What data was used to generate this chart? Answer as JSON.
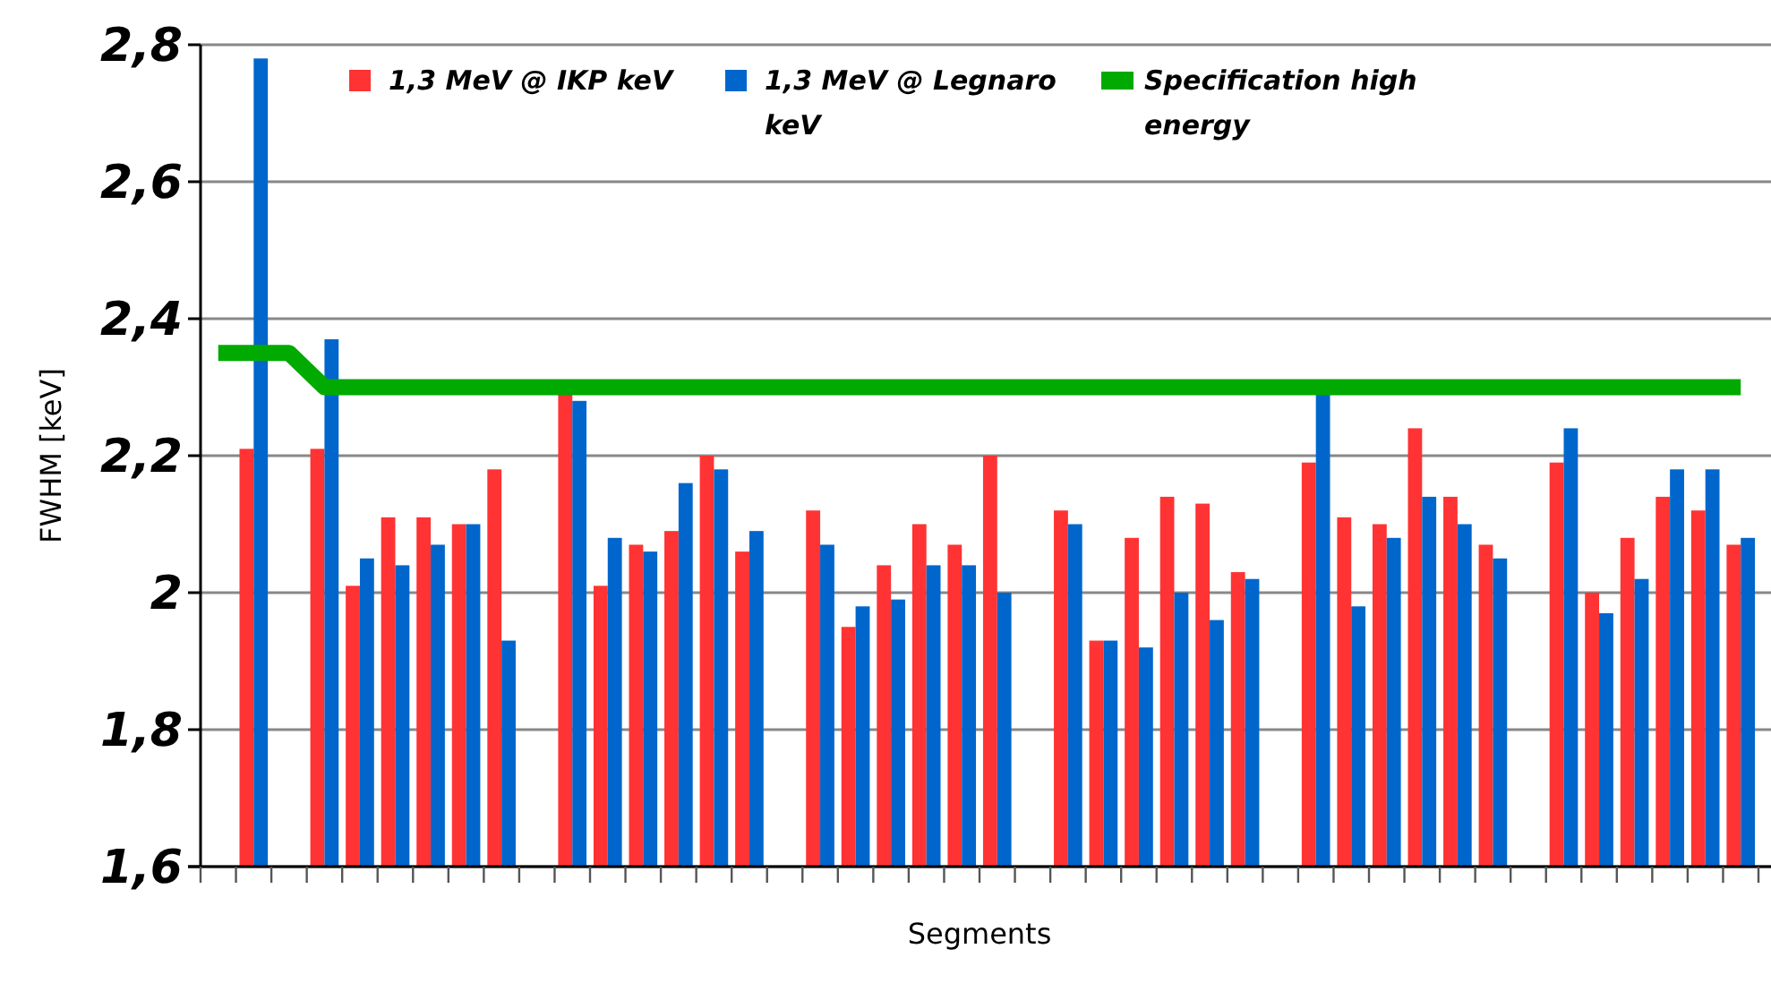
{
  "chart_data": {
    "type": "bar",
    "xlabel": "Segments",
    "ylabel": "FWHM [keV]",
    "categories": [
      null,
      null,
      null,
      null,
      null,
      null,
      null,
      null,
      null,
      null,
      null,
      null,
      null,
      null,
      null,
      null,
      null,
      null,
      null,
      null,
      null,
      null,
      null,
      null,
      null,
      null,
      null,
      null,
      null,
      null,
      null,
      null,
      null,
      null,
      null,
      null,
      null,
      null,
      null,
      null,
      null,
      null,
      null,
      null
    ],
    "series": [
      {
        "name": "1,3 MeV @ IKP keV",
        "color": "#ff3333",
        "values": [
          null,
          2.21,
          null,
          2.21,
          2.01,
          2.11,
          2.11,
          2.1,
          2.18,
          null,
          2.29,
          2.01,
          2.07,
          2.09,
          2.2,
          2.06,
          null,
          2.12,
          1.95,
          2.04,
          2.1,
          2.07,
          2.2,
          null,
          2.12,
          1.93,
          2.08,
          2.14,
          2.13,
          2.03,
          null,
          2.19,
          2.11,
          2.1,
          2.24,
          2.14,
          2.07,
          null,
          2.19,
          2.0,
          2.08,
          2.14,
          2.12,
          2.07
        ]
      },
      {
        "name": "1,3 MeV @ Legnaro keV",
        "color": "#0066cc",
        "values": [
          null,
          2.78,
          null,
          2.37,
          2.05,
          2.04,
          2.07,
          2.1,
          1.93,
          null,
          2.28,
          2.08,
          2.06,
          2.16,
          2.18,
          2.09,
          null,
          2.07,
          1.98,
          1.99,
          2.04,
          2.04,
          2.0,
          null,
          2.1,
          1.93,
          1.92,
          2.0,
          1.96,
          2.02,
          null,
          2.29,
          1.98,
          2.08,
          2.14,
          2.1,
          2.05,
          null,
          2.24,
          1.97,
          2.02,
          2.18,
          2.18,
          2.08
        ]
      },
      {
        "name": "Specification high energy",
        "type": "line",
        "color": "#00aa00",
        "values": [
          2.35,
          2.35,
          2.35,
          2.3,
          2.3,
          2.3,
          2.3,
          2.3,
          2.3,
          2.3,
          2.3,
          2.3,
          2.3,
          2.3,
          2.3,
          2.3,
          2.3,
          2.3,
          2.3,
          2.3,
          2.3,
          2.3,
          2.3,
          2.3,
          2.3,
          2.3,
          2.3,
          2.3,
          2.3,
          2.3,
          2.3,
          2.3,
          2.3,
          2.3,
          2.3,
          2.3,
          2.3,
          2.3,
          2.3,
          2.3,
          2.3,
          2.3,
          2.3,
          2.3
        ]
      }
    ],
    "ylim": [
      1.6,
      2.8
    ],
    "yticks": [
      {
        "value": 1.6,
        "label": "1,6"
      },
      {
        "value": 1.8,
        "label": "1,8"
      },
      2,
      {
        "value": 2.2,
        "label": "2,2"
      },
      {
        "value": 2.4,
        "label": "2,4"
      },
      {
        "value": 2.6,
        "label": "2,6"
      },
      {
        "value": 2.8,
        "label": "2,8"
      }
    ],
    "grid": "y",
    "legend": "top"
  }
}
